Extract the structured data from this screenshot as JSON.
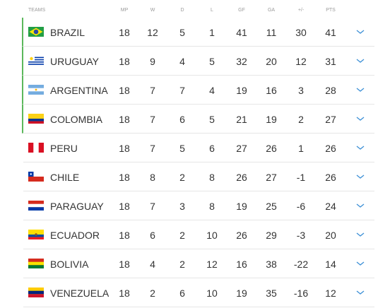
{
  "table": {
    "headers": [
      "TEAMS",
      "MP",
      "W",
      "D",
      "L",
      "GF",
      "GA",
      "+/-",
      "Pts"
    ],
    "rows": [
      [
        "BRAZIL",
        18,
        12,
        5,
        1,
        41,
        11,
        30,
        41
      ],
      [
        "URUGUAY",
        18,
        9,
        4,
        5,
        32,
        20,
        12,
        31
      ],
      [
        "ARGENTINA",
        18,
        7,
        7,
        4,
        19,
        16,
        3,
        28
      ],
      [
        "COLOMBIA",
        18,
        7,
        6,
        5,
        21,
        19,
        2,
        27
      ],
      [
        "PERU",
        18,
        7,
        5,
        6,
        27,
        26,
        1,
        26
      ],
      [
        "CHILE",
        18,
        8,
        2,
        8,
        26,
        27,
        -1,
        26
      ],
      [
        "PARAGUAY",
        18,
        7,
        3,
        8,
        19,
        25,
        -6,
        24
      ],
      [
        "ECUADOR",
        18,
        6,
        2,
        10,
        26,
        29,
        -3,
        20
      ],
      [
        "BOLIVIA",
        18,
        4,
        2,
        12,
        16,
        38,
        -22,
        14
      ],
      [
        "VENEZUELA",
        18,
        2,
        6,
        10,
        19,
        35,
        -16,
        12
      ]
    ]
  }
}
